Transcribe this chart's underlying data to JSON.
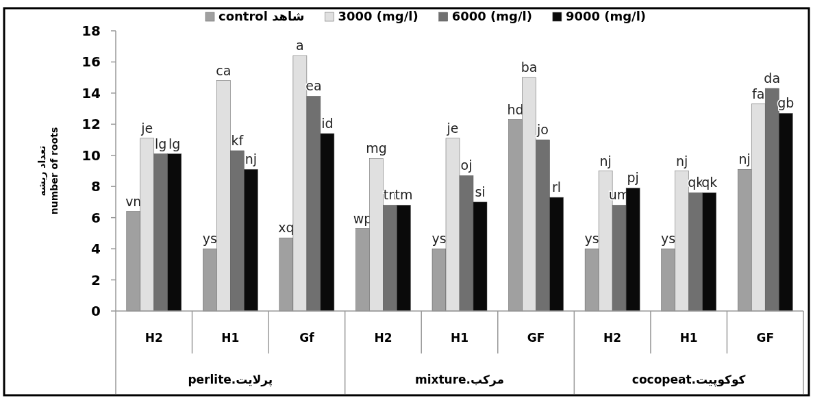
{
  "chart_data": {
    "type": "bar",
    "ylabel": "تعداد ریشه\nnumber of roots",
    "categories": [
      "H2",
      "H1",
      "Gf",
      "H2",
      "H1",
      "GF",
      "H2",
      "H1",
      "GF"
    ],
    "annotations": [
      "perlite.پرلایت",
      "mixture.مرکب",
      "cocopeat.کوکوپیت"
    ],
    "ylim": [
      0,
      18
    ],
    "yticks": [
      0,
      2,
      4,
      6,
      8,
      10,
      12,
      14,
      16,
      18
    ],
    "legend": "top",
    "grid": false,
    "series": [
      {
        "name": "control شاهد",
        "color": "#a0a0a0",
        "values": [
          6.4,
          4.0,
          4.7,
          5.3,
          4.0,
          12.3,
          4.0,
          4.0,
          9.1
        ],
        "value_labels": [
          "vn",
          "ys",
          "xq",
          "wp",
          "ys",
          "hd",
          "ys",
          "ys",
          "nj"
        ]
      },
      {
        "name": "3000 (mg/l)",
        "color": "#e0e0e0",
        "values": [
          11.1,
          14.8,
          16.4,
          9.8,
          11.1,
          15.0,
          9.0,
          9.0,
          13.3
        ],
        "value_labels": [
          "je",
          "ca",
          "a",
          "mg",
          "je",
          "ba",
          "nj",
          "nj",
          "fa"
        ]
      },
      {
        "name": "6000 (mg/l)",
        "color": "#707070",
        "values": [
          10.1,
          10.3,
          13.8,
          6.8,
          8.7,
          11.0,
          6.8,
          7.6,
          14.3
        ],
        "value_labels": [
          "lg",
          "kf",
          "ea",
          "tn",
          "oj",
          "jo",
          "um",
          "qk",
          "da"
        ]
      },
      {
        "name": "9000 (mg/l)",
        "color": "#0a0a0a",
        "values": [
          10.1,
          9.1,
          11.4,
          6.8,
          7.0,
          7.3,
          7.9,
          7.6,
          12.7
        ],
        "value_labels": [
          "lg",
          "nj",
          "id",
          "tm",
          "si",
          "rl",
          "pj",
          "qk",
          "gb"
        ]
      }
    ]
  }
}
